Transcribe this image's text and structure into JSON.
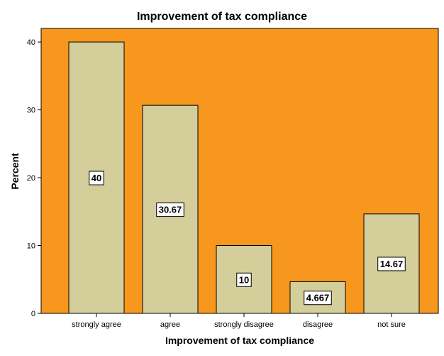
{
  "colors": {
    "plot_background": "#f7971e",
    "bar_fill": "#d4ce9a",
    "bar_stroke": "#000000",
    "label_box": "#ffffff"
  },
  "chart_data": {
    "type": "bar",
    "title": "Improvement of tax compliance",
    "xlabel": "Improvement of tax compliance",
    "ylabel": "Percent",
    "categories": [
      "strongly agree",
      "agree",
      "strongly disagree",
      "disagree",
      "not sure"
    ],
    "values": [
      40,
      30.67,
      10,
      4.667,
      14.67
    ],
    "data_labels": [
      "40",
      "30.67",
      "10",
      "4.667",
      "14.67"
    ],
    "ylim": [
      0,
      42
    ],
    "yticks": [
      0,
      10,
      20,
      30,
      40
    ],
    "grid": false,
    "legend": "none"
  }
}
